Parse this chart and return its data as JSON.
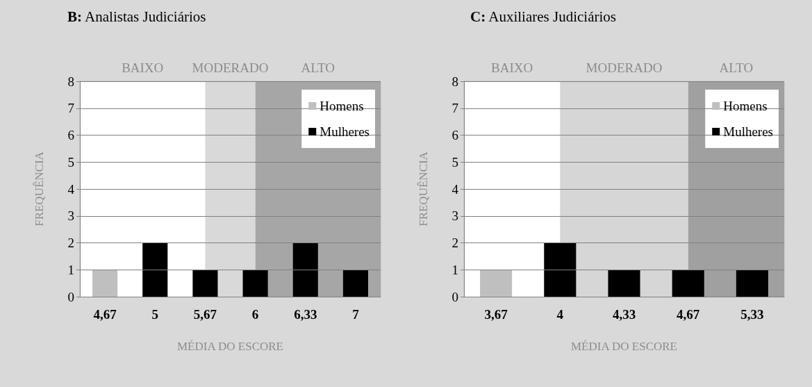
{
  "chart_data": [
    {
      "type": "bar",
      "title": "B: Analistas Judiciários",
      "xlabel": "MÉDIA DO ESCORE",
      "ylabel": "FREQUÊNCIA",
      "categories": [
        "4,67",
        "5",
        "5,67",
        "6",
        "6,33",
        "7"
      ],
      "series": [
        {
          "name": "Homens",
          "color": "#bfbfbf",
          "values": [
            1,
            null,
            null,
            null,
            null,
            null
          ]
        },
        {
          "name": "Mulheres",
          "color": "#000000",
          "values": [
            null,
            2,
            1,
            1,
            2,
            1
          ]
        }
      ],
      "ylim": [
        0,
        8
      ],
      "yticks": [
        0,
        1,
        2,
        3,
        4,
        5,
        6,
        7,
        8
      ],
      "grid": "y",
      "legend": "top right",
      "bands": [
        {
          "axis": "x",
          "from": "4,67",
          "to": "5,67",
          "label": "BAIXO",
          "color": "#ffffff"
        },
        {
          "axis": "x",
          "from": "5,67",
          "to": "6",
          "label": "MODERADO",
          "color": "#d9d9d9"
        },
        {
          "axis": "x",
          "from": "6",
          "to": "7",
          "label": "ALTO",
          "color": "#a6a6a6"
        }
      ]
    },
    {
      "type": "bar",
      "title": "C: Auxiliares Judiciários",
      "xlabel": "MÉDIA DO ESCORE",
      "ylabel": "FREQUÊNCIA",
      "categories": [
        "3,67",
        "4",
        "4,33",
        "4,67",
        "5,33"
      ],
      "series": [
        {
          "name": "Homens",
          "color": "#bfbfbf",
          "values": [
            1,
            null,
            null,
            null,
            null
          ]
        },
        {
          "name": "Mulheres",
          "color": "#000000",
          "values": [
            null,
            2,
            1,
            1,
            1
          ]
        }
      ],
      "ylim": [
        0,
        8
      ],
      "yticks": [
        0,
        1,
        2,
        3,
        4,
        5,
        6,
        7,
        8
      ],
      "grid": "y",
      "legend": "top right",
      "bands": [
        {
          "axis": "x",
          "from": "3,67",
          "to": "4",
          "label": "BAIXO",
          "color": "#ffffff"
        },
        {
          "axis": "x",
          "from": "4",
          "to": "4,67",
          "label": "MODERADO",
          "color": "#d6d6d6"
        },
        {
          "axis": "x",
          "from": "4,67",
          "to": "5,33",
          "label": "ALTO",
          "color": "#a0a0a0"
        }
      ]
    }
  ]
}
